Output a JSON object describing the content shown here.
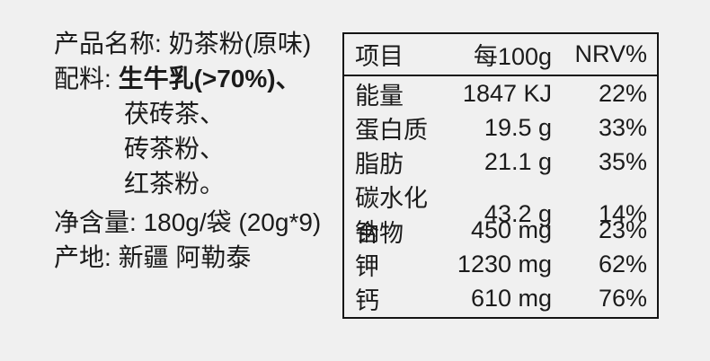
{
  "page": {
    "background_color": "#f0f0f0",
    "text_color": "#1b1b1b",
    "table_border_color": "#141414"
  },
  "product_info": {
    "product_name": {
      "label": "产品名称: ",
      "value": "奶茶粉(原味)"
    },
    "ingredients": {
      "label": "配料: ",
      "first_line": "生牛乳(>70%)、",
      "continuation_lines": [
        "茯砖茶、",
        "砖茶粉、",
        "红茶粉。"
      ]
    },
    "net_content": {
      "label": "净含量: ",
      "value": "180g/袋 (20g*9)"
    },
    "origin": {
      "label": "产地: ",
      "value": "新疆 阿勒泰"
    }
  },
  "nutrition_table": {
    "headers": {
      "item": "项目",
      "per": "每100g",
      "nrv": "NRV%"
    },
    "rows": [
      {
        "item": "能量",
        "value": "1847 KJ",
        "nrv": "22%"
      },
      {
        "item": "蛋白质",
        "value": "19.5 g",
        "nrv": "33%"
      },
      {
        "item": "脂肪",
        "value": "21.1 g",
        "nrv": "35%"
      },
      {
        "item": "碳水化合物",
        "value": "43.2 g",
        "nrv": "14%"
      },
      {
        "item": "钠",
        "value": "450 mg",
        "nrv": "23%"
      },
      {
        "item": "钾",
        "value": "1230 mg",
        "nrv": "62%"
      },
      {
        "item": "钙",
        "value": "610 mg",
        "nrv": "76%"
      }
    ]
  }
}
